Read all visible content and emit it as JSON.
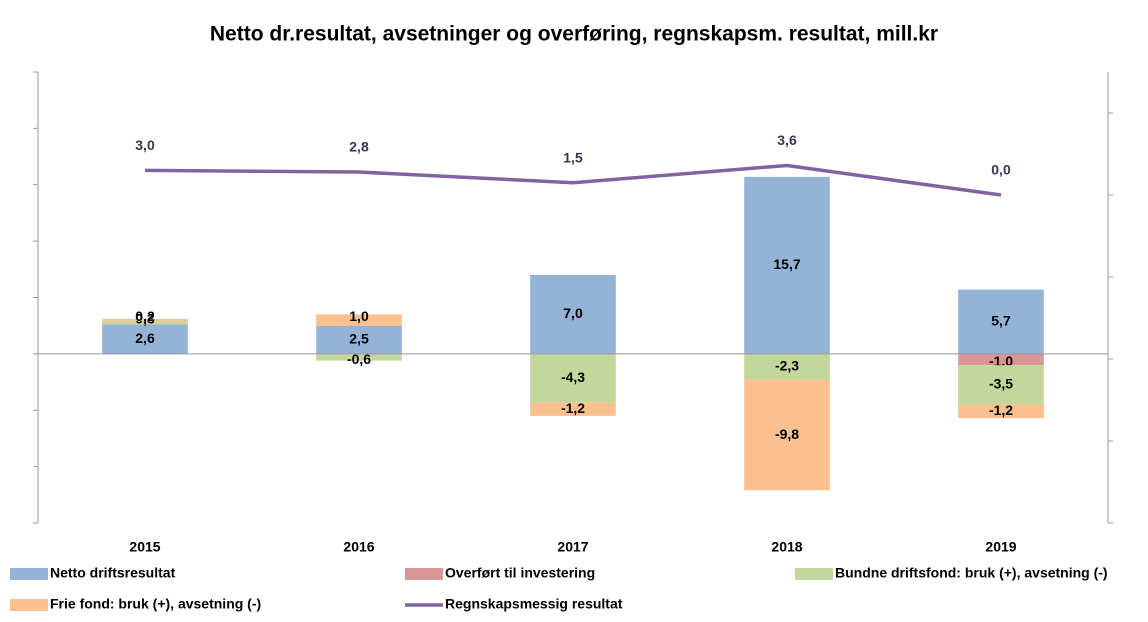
{
  "chart_data": {
    "type": "stacked_bar_line",
    "title": "Netto dr.resultat, avsetninger og overføring, regnskapsm. resultat, mill.kr",
    "categories": [
      "2015",
      "2016",
      "2017",
      "2018",
      "2019"
    ],
    "series": [
      {
        "name": "Netto driftsresultat",
        "color": "#95b3d7",
        "values": [
          2.6,
          2.5,
          7.0,
          15.7,
          5.7
        ],
        "value_labels": [
          "2,6",
          "2,5",
          "7,0",
          "15,7",
          "5,7"
        ]
      },
      {
        "name": "Overført til investering",
        "color": "#d99694",
        "values": [
          null,
          null,
          null,
          null,
          -1.0
        ],
        "value_labels": [
          null,
          null,
          null,
          null,
          "-1,0"
        ]
      },
      {
        "name": "Bundne driftsfond: bruk (+), avsetning (-)",
        "color": "#c3d69b",
        "values": [
          0.3,
          -0.6,
          -4.3,
          -2.3,
          -3.5
        ],
        "value_labels": [
          "0,3",
          "-0,6",
          "-4,3",
          "-2,3",
          "-3,5"
        ]
      },
      {
        "name": "Frie fond: bruk (+), avsetning (-)",
        "color": "#fac090",
        "values": [
          0.2,
          1.0,
          -1.2,
          -9.8,
          -1.2
        ],
        "value_labels": [
          "0,2",
          "1,0",
          "-1,2",
          "-9,8",
          "-1,2"
        ]
      },
      {
        "name": "Regnskapsmessig resultat",
        "color": "#8064a2",
        "type": "line",
        "axis": "y2",
        "values": [
          3.0,
          2.8,
          1.5,
          3.6,
          0.0
        ],
        "value_labels": [
          "3,0",
          "2,8",
          "1,5",
          "3,6",
          "0,0"
        ]
      }
    ],
    "ylim": [
      -15,
      25
    ],
    "yticks": [
      -15,
      -10,
      -5,
      0,
      5,
      10,
      15,
      20,
      25
    ],
    "y2lim": [
      -40,
      15
    ],
    "y2ticks": [
      -40,
      -30,
      -20,
      -10,
      0,
      10
    ],
    "legend": "bottom"
  }
}
